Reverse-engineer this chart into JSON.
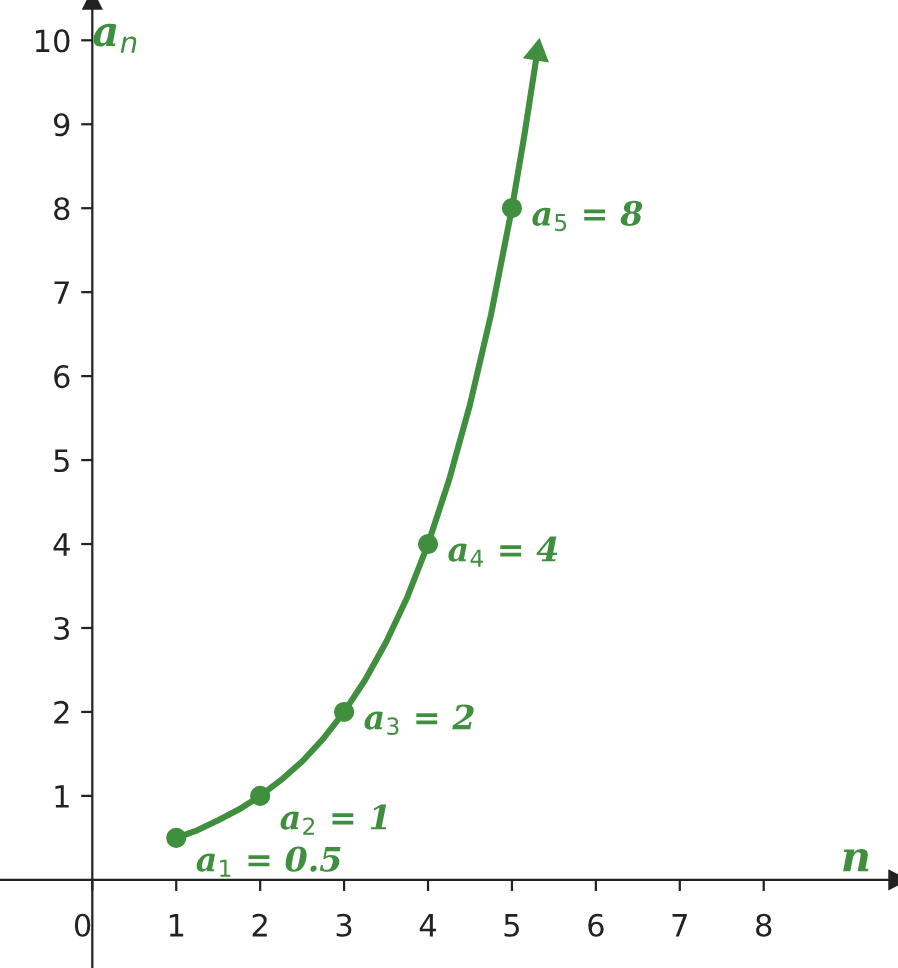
{
  "chart_data": {
    "type": "line",
    "xlabel": "n",
    "ylabel": "a$_{n}$",
    "series": [
      {
        "color": "#3f8f3f",
        "marker": "none",
        "x": [
          1,
          1.25,
          1.5,
          1.75,
          2,
          2.25,
          2.5,
          2.75,
          3,
          3.25,
          3.5,
          3.75,
          4,
          4.25,
          4.5,
          4.75,
          5,
          5.15,
          5.3
        ],
        "values": [
          0.5,
          0.59,
          0.71,
          0.84,
          1,
          1.19,
          1.41,
          1.68,
          2,
          2.38,
          2.83,
          3.36,
          4,
          4.76,
          5.66,
          6.73,
          8,
          8.88,
          9.85
        ]
      },
      {
        "type": "scatter",
        "color": "#3f8f3f",
        "marker": "circle",
        "x": [
          1,
          2,
          3,
          4,
          5
        ],
        "values": [
          0.5,
          1,
          2,
          4,
          8
        ]
      }
    ],
    "annotations": [
      {
        "text": "a$_{1}$ = 0.5",
        "x": 1,
        "y": 0.5
      },
      {
        "text": "a$_{2}$ = 1",
        "x": 2,
        "y": 1
      },
      {
        "text": "a$_{3}$ = 2",
        "x": 3,
        "y": 2
      },
      {
        "text": "a$_{4}$ = 4",
        "x": 4,
        "y": 4
      },
      {
        "text": "a$_{5}$ = 8",
        "x": 5,
        "y": 8
      }
    ],
    "xlim": [
      -1.1,
      9.6
    ],
    "ylim": [
      -1.05,
      10.48
    ],
    "xticks": [
      0,
      1,
      2,
      3,
      4,
      5,
      6,
      7,
      8
    ],
    "yticks": [
      1,
      2,
      3,
      4,
      5,
      6,
      7,
      8,
      9,
      10
    ],
    "line_style": "solid",
    "grid": false,
    "legend": false
  }
}
